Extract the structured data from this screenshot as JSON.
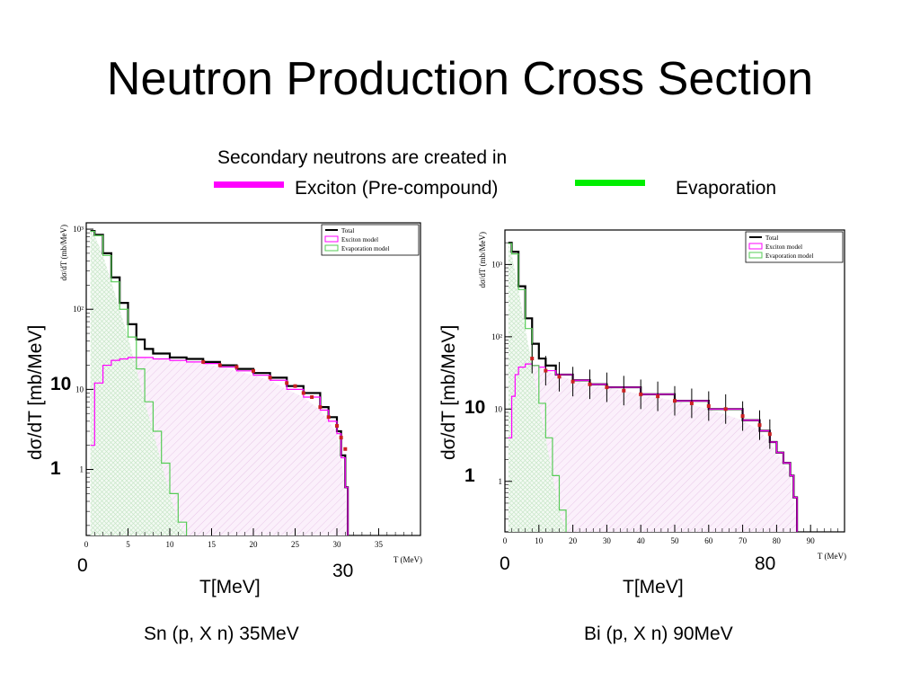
{
  "slide": {
    "title": "Neutron Production Cross Section",
    "subtitle": "Secondary neutrons are created in",
    "legend_exciton": "Exciton (Pre-compound)",
    "legend_evaporation": "Evaporation",
    "legend_colors": {
      "exciton": "#ff00ff",
      "evaporation": "#00ee00"
    }
  },
  "chart_data": [
    {
      "type": "line",
      "caption": "Sn (p, X n) 35MeV",
      "xlabel": "T[MeV]",
      "xlabel_inner": "T (MeV)",
      "ylabel": "dσ/dT [mb/MeV]",
      "ylabel_inner": "dσ/dT (mb/MeV)",
      "y_scale": "log",
      "xlim": [
        0,
        40
      ],
      "ylim": [
        0.15,
        1200
      ],
      "x_ticks": [
        "0",
        "5",
        "10",
        "15",
        "20",
        "25",
        "30",
        "35"
      ],
      "y_ticks": [
        "1",
        "10",
        "10²",
        "10³"
      ],
      "overlay_labels": {
        "x0": "0",
        "x1": "30",
        "y10": "10",
        "y1": "1"
      },
      "legend": [
        "Total",
        "Exciton model",
        "Evaporation model"
      ],
      "series": [
        {
          "name": "Total",
          "color": "#000000",
          "x": [
            0.5,
            1,
            2,
            3,
            4,
            5,
            6,
            7,
            8,
            10,
            12,
            14,
            16,
            18,
            20,
            22,
            24,
            26,
            28,
            29,
            30,
            30.5,
            31,
            31.3
          ],
          "y": [
            950,
            850,
            500,
            250,
            120,
            65,
            42,
            32,
            28,
            25,
            24,
            22,
            20,
            18,
            16,
            14,
            11,
            9,
            6,
            4.5,
            3,
            1.5,
            0.6,
            0.15
          ]
        },
        {
          "name": "Exciton model",
          "color": "#ff00ff",
          "x": [
            0.5,
            1,
            2,
            3,
            4,
            5,
            6,
            8,
            10,
            12,
            14,
            16,
            18,
            20,
            22,
            24,
            26,
            28,
            29,
            30,
            30.5,
            31,
            31.3
          ],
          "y": [
            2,
            12,
            20,
            23,
            24,
            25,
            25,
            24,
            23,
            22,
            21,
            19,
            17,
            15,
            13,
            10,
            8,
            5.5,
            4,
            2.8,
            1.4,
            0.6,
            0.15
          ]
        },
        {
          "name": "Evaporation model",
          "color": "#55cc55",
          "x": [
            0.5,
            1,
            2,
            3,
            4,
            5,
            6,
            7,
            8,
            9,
            10,
            11,
            12
          ],
          "y": [
            940,
            830,
            470,
            220,
            100,
            45,
            18,
            7,
            3,
            1.2,
            0.5,
            0.22,
            0.15
          ]
        },
        {
          "name": "Data",
          "color": "#cc2222",
          "x": [
            14,
            16,
            18,
            20,
            22,
            24,
            25,
            26,
            27,
            28,
            29,
            30,
            30.5,
            31
          ],
          "y": [
            22,
            20,
            19,
            17,
            14,
            12,
            11,
            9,
            8,
            6,
            4.5,
            3.5,
            2.5,
            1.8
          ]
        }
      ]
    },
    {
      "type": "line",
      "caption": "Bi (p, X n) 90MeV",
      "xlabel": "T[MeV]",
      "xlabel_inner": "T (MeV)",
      "ylabel": "dσ/dT [mb/MeV]",
      "ylabel_inner": "dσ/dT (mb/MeV)",
      "y_scale": "log",
      "xlim": [
        0,
        100
      ],
      "ylim": [
        0.2,
        3000
      ],
      "x_ticks": [
        "0",
        "10",
        "20",
        "30",
        "40",
        "50",
        "60",
        "70",
        "80",
        "90"
      ],
      "y_ticks": [
        "1",
        "10",
        "10²",
        "10³"
      ],
      "overlay_labels": {
        "x0": "0",
        "x1": "80",
        "y10": "10",
        "y1": "1"
      },
      "legend": [
        "Total",
        "Exciton model",
        "Evaporation model"
      ],
      "series": [
        {
          "name": "Total",
          "color": "#000000",
          "x": [
            1,
            2,
            4,
            6,
            8,
            10,
            12,
            15,
            20,
            25,
            30,
            40,
            50,
            60,
            70,
            75,
            78,
            80,
            82,
            84,
            85,
            86
          ],
          "y": [
            2000,
            1500,
            500,
            180,
            80,
            50,
            40,
            30,
            25,
            22,
            20,
            16,
            13,
            10,
            7,
            5,
            3.5,
            2.5,
            1.8,
            1.2,
            0.6,
            0.2
          ]
        },
        {
          "name": "Exciton model",
          "color": "#ff00ff",
          "x": [
            1,
            2,
            3,
            4,
            6,
            8,
            10,
            12,
            15,
            20,
            25,
            30,
            40,
            50,
            60,
            70,
            75,
            78,
            80,
            82,
            84,
            85,
            86
          ],
          "y": [
            4,
            15,
            30,
            38,
            42,
            40,
            38,
            34,
            30,
            25,
            22,
            20,
            16,
            13,
            10,
            7,
            5,
            3.5,
            2.5,
            1.8,
            1.2,
            0.6,
            0.2
          ]
        },
        {
          "name": "Evaporation model",
          "color": "#55cc55",
          "x": [
            1,
            2,
            4,
            6,
            8,
            10,
            12,
            14,
            16,
            18
          ],
          "y": [
            1950,
            1400,
            450,
            130,
            40,
            12,
            4,
            1.2,
            0.4,
            0.2
          ]
        },
        {
          "name": "Data",
          "color": "#cc2222",
          "x": [
            8,
            12,
            16,
            20,
            25,
            30,
            35,
            40,
            45,
            50,
            55,
            60,
            65,
            70,
            75,
            78
          ],
          "y": [
            50,
            34,
            28,
            24,
            22,
            20,
            18,
            16,
            15,
            13,
            12,
            11,
            10,
            8,
            6,
            4.5
          ]
        }
      ]
    }
  ]
}
